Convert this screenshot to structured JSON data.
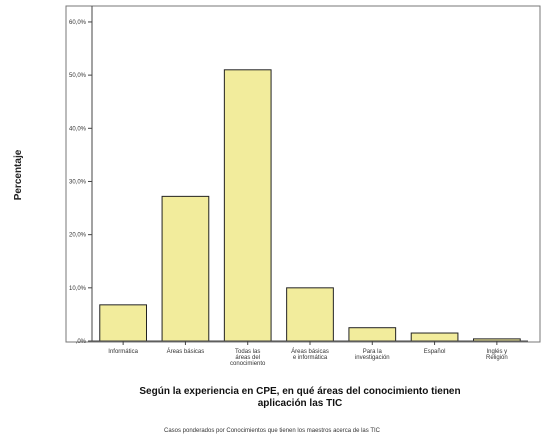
{
  "chart_data": {
    "type": "bar",
    "categories": [
      [
        "Informática"
      ],
      [
        "Áreas básicas"
      ],
      [
        "Todas las",
        "áreas del",
        "conocimiento"
      ],
      [
        "Áreas básicas",
        "e informática"
      ],
      [
        "Para la",
        "investigación"
      ],
      [
        "Español"
      ],
      [
        "Inglés y",
        "Religión"
      ]
    ],
    "values": [
      6.8,
      27.2,
      51.0,
      10.0,
      2.5,
      1.5,
      0.4
    ],
    "ylabel": "Percentaje",
    "xlabel": [
      "Según la experiencia en CPE, en qué áreas del conocimiento tienen",
      "aplicación las TIC"
    ],
    "ylim": [
      0,
      63
    ],
    "yticks": [
      0,
      10,
      20,
      30,
      40,
      50,
      60
    ],
    "ytick_labels": [
      ",0%",
      "10,0%",
      "20,0%",
      "30,0%",
      "40,0%",
      "50,0%",
      "60,0%"
    ],
    "grid": false,
    "bar_color": "#f2ec9c",
    "bar_stroke": "#222222",
    "footnote": "Casos ponderados por Conocimientos que tienen los maestros acerca de las TIC"
  }
}
